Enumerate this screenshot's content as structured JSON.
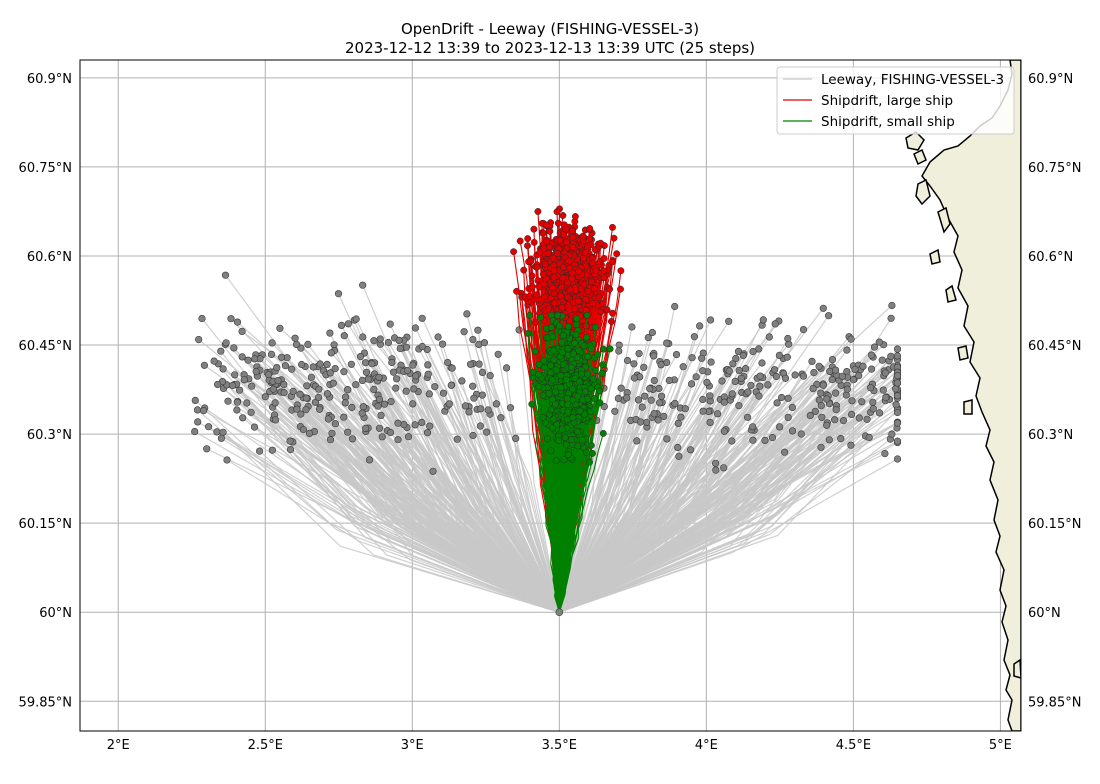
{
  "title": {
    "line1": "OpenDrift - Leeway (FISHING-VESSEL-3)",
    "line2": "2023-12-12 13:39 to 2023-12-13 13:39 UTC (25 steps)"
  },
  "colors": {
    "leeway": "#808080",
    "leeway_line": "#c8c8c8",
    "large_ship": "#e00000",
    "small_ship": "#008000",
    "land": "#efefdb"
  },
  "chart_data": {
    "type": "scatter",
    "map_extent": {
      "lon": [
        1.87,
        5.07
      ],
      "lat": [
        59.8,
        60.93
      ]
    },
    "grid": true,
    "x_ticks": [
      "2°E",
      "2.5°E",
      "3°E",
      "3.5°E",
      "4°E",
      "4.5°E",
      "5°E"
    ],
    "x_tick_values": [
      2,
      2.5,
      3,
      3.5,
      4,
      4.5,
      5
    ],
    "y_ticks": [
      "59.85°N",
      "60°N",
      "60.15°N",
      "60.3°N",
      "60.45°N",
      "60.6°N",
      "60.75°N",
      "60.9°N"
    ],
    "y_tick_values": [
      59.85,
      60.0,
      60.15,
      60.3,
      60.45,
      60.6,
      60.75,
      60.9
    ],
    "seed_position": {
      "lon": 3.5,
      "lat": 60.0
    },
    "legend_placement": "top-right",
    "series": [
      {
        "name": "Leeway, FISHING-VESSEL-3",
        "lon_range": [
          2.26,
          4.65
        ],
        "lat_range": [
          60.11,
          60.63
        ],
        "particles": 600
      },
      {
        "name": "Shipdrift, large ship",
        "lon_range": [
          3.1,
          3.87
        ],
        "lat_range": [
          60.24,
          60.72
        ],
        "particles": 500
      },
      {
        "name": "Shipdrift, small ship",
        "lon_range": [
          3.32,
          3.72
        ],
        "lat_range": [
          60.0,
          60.5
        ],
        "particles": 500
      }
    ]
  }
}
